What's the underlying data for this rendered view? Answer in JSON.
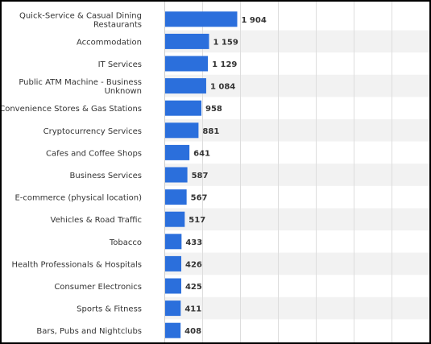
{
  "chart_data": {
    "type": "bar",
    "orientation": "horizontal",
    "categories": [
      "Quick-Service & Casual Dining Restaurants",
      "Accommodation",
      "IT Services",
      "Public ATM Machine - Business Unknown",
      "Convenience Stores & Gas Stations",
      "Cryptocurrency Services",
      "Cafes and Coffee Shops",
      "Business Services",
      "E-commerce (physical location)",
      "Vehicles & Road Traffic",
      "Tobacco",
      "Health Professionals & Hospitals",
      "Consumer Electronics",
      "Sports & Fitness",
      "Bars, Pubs and Nightclubs"
    ],
    "category_lines": [
      [
        "Quick-Service & Casual Dining",
        "Restaurants"
      ],
      [
        "Accommodation"
      ],
      [
        "IT Services"
      ],
      [
        "Public ATM Machine - Business",
        "Unknown"
      ],
      [
        "Convenience Stores & Gas Stations"
      ],
      [
        "Cryptocurrency Services"
      ],
      [
        "Cafes and Coffee Shops"
      ],
      [
        "Business Services"
      ],
      [
        "E-commerce (physical location)"
      ],
      [
        "Vehicles & Road Traffic"
      ],
      [
        "Tobacco"
      ],
      [
        "Health Professionals & Hospitals"
      ],
      [
        "Consumer Electronics"
      ],
      [
        "Sports & Fitness"
      ],
      [
        "Bars, Pubs and Nightclubs"
      ]
    ],
    "values": [
      1904,
      1159,
      1129,
      1084,
      958,
      881,
      641,
      587,
      567,
      517,
      433,
      426,
      425,
      411,
      408
    ],
    "value_labels": [
      "1 904",
      "1 159",
      "1 129",
      "1 084",
      "958",
      "881",
      "641",
      "587",
      "567",
      "517",
      "433",
      "426",
      "425",
      "411",
      "408"
    ],
    "xlim": [
      0,
      7000
    ],
    "x_gridlines": [
      1000,
      2000,
      3000,
      4000,
      5000,
      6000
    ],
    "grid": true,
    "title": "",
    "xlabel": "",
    "ylabel": "",
    "bar_color": "#2b6fdc",
    "stripe_color": "#f2f2f2"
  }
}
